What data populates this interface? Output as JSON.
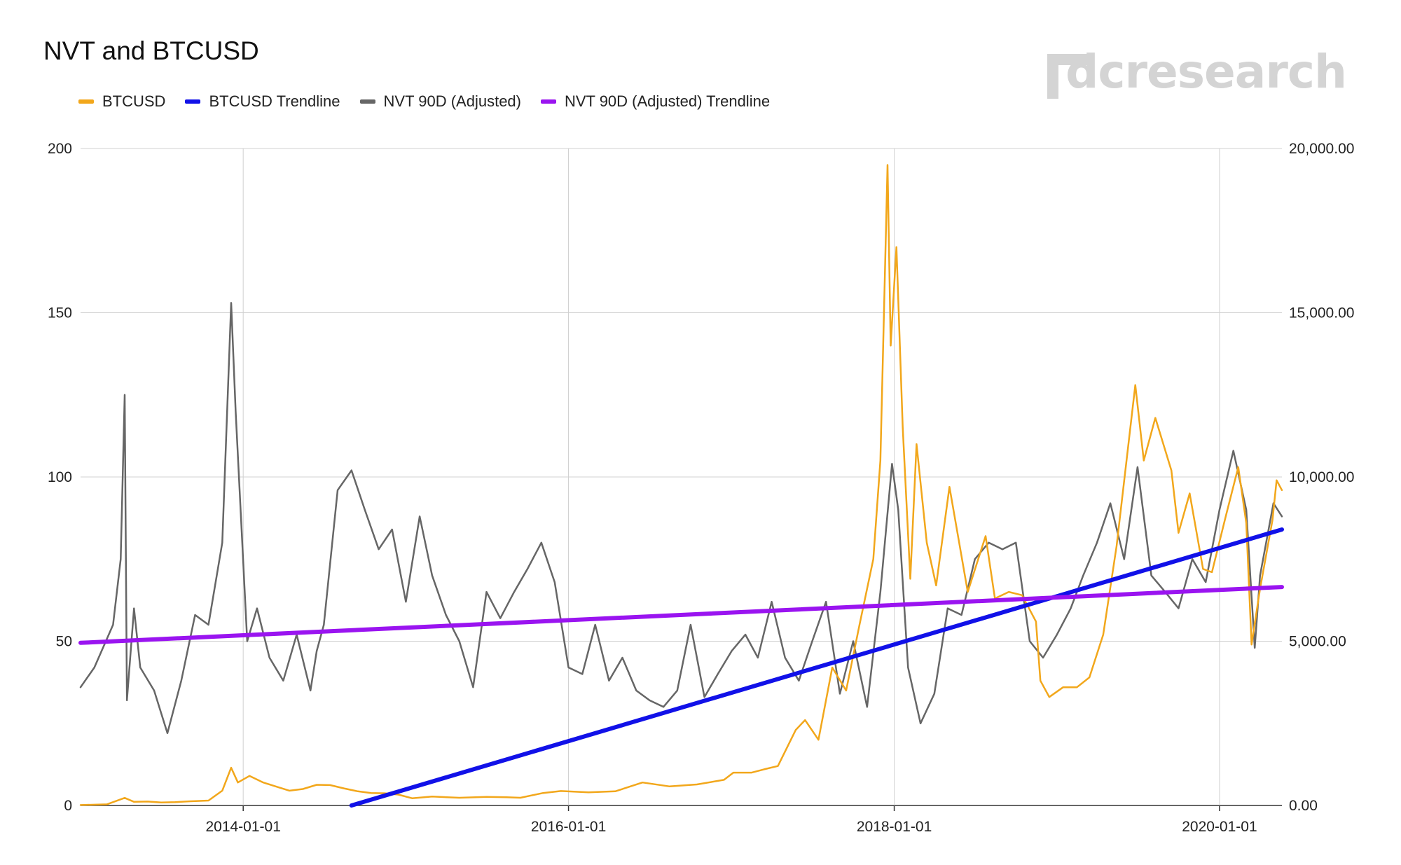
{
  "chart_data": {
    "type": "line",
    "title": "NVT and BTCUSD",
    "watermark": "dcresearch",
    "legend_position": "top-left",
    "grid": true,
    "colors": {
      "BTCUSD": "#f2a71b",
      "BTCUSD Trendline": "#1111e8",
      "NVT 90D (Adjusted)": "#666666",
      "NVT 90D (Adjusted) Trendline": "#9a14f0"
    },
    "x_axis": {
      "type": "date",
      "range": [
        "2013-01-01",
        "2020-05-20"
      ],
      "tick_labels": [
        "2014-01-01",
        "2016-01-01",
        "2018-01-01",
        "2020-01-01"
      ]
    },
    "y_left": {
      "range": [
        0,
        200
      ],
      "tick_labels": [
        "0",
        "50",
        "100",
        "150",
        "200"
      ]
    },
    "y_right": {
      "range": [
        0,
        20000
      ],
      "tick_labels": [
        "0.00",
        "5,000.00",
        "10,000.00",
        "15,000.00",
        "20,000.00"
      ]
    },
    "series": [
      {
        "name": "BTCUSD",
        "axis": "right",
        "points": [
          [
            "2013-01-01",
            13
          ],
          [
            "2013-03-01",
            35
          ],
          [
            "2013-04-10",
            230
          ],
          [
            "2013-05-01",
            110
          ],
          [
            "2013-06-01",
            120
          ],
          [
            "2013-07-01",
            90
          ],
          [
            "2013-08-01",
            100
          ],
          [
            "2013-09-01",
            125
          ],
          [
            "2013-10-15",
            150
          ],
          [
            "2013-11-15",
            450
          ],
          [
            "2013-12-05",
            1150
          ],
          [
            "2013-12-20",
            700
          ],
          [
            "2014-01-15",
            900
          ],
          [
            "2014-02-15",
            700
          ],
          [
            "2014-03-15",
            580
          ],
          [
            "2014-04-15",
            450
          ],
          [
            "2014-05-15",
            500
          ],
          [
            "2014-06-15",
            630
          ],
          [
            "2014-07-15",
            620
          ],
          [
            "2014-08-15",
            520
          ],
          [
            "2014-09-15",
            430
          ],
          [
            "2014-10-15",
            380
          ],
          [
            "2014-11-15",
            370
          ],
          [
            "2014-12-15",
            330
          ],
          [
            "2015-01-15",
            220
          ],
          [
            "2015-03-01",
            270
          ],
          [
            "2015-05-01",
            235
          ],
          [
            "2015-07-01",
            260
          ],
          [
            "2015-08-15",
            250
          ],
          [
            "2015-09-15",
            235
          ],
          [
            "2015-11-05",
            380
          ],
          [
            "2015-12-15",
            440
          ],
          [
            "2016-02-15",
            400
          ],
          [
            "2016-04-15",
            430
          ],
          [
            "2016-06-15",
            700
          ],
          [
            "2016-08-15",
            580
          ],
          [
            "2016-10-15",
            640
          ],
          [
            "2016-12-15",
            780
          ],
          [
            "2017-01-05",
            1000
          ],
          [
            "2017-02-15",
            1000
          ],
          [
            "2017-03-15",
            1100
          ],
          [
            "2017-04-15",
            1200
          ],
          [
            "2017-05-25",
            2300
          ],
          [
            "2017-06-15",
            2600
          ],
          [
            "2017-07-15",
            2000
          ],
          [
            "2017-08-15",
            4200
          ],
          [
            "2017-09-15",
            3500
          ],
          [
            "2017-10-15",
            5500
          ],
          [
            "2017-11-15",
            7500
          ],
          [
            "2017-12-01",
            10500
          ],
          [
            "2017-12-17",
            19500
          ],
          [
            "2017-12-24",
            14000
          ],
          [
            "2018-01-06",
            17000
          ],
          [
            "2018-01-20",
            11500
          ],
          [
            "2018-02-06",
            6900
          ],
          [
            "2018-02-20",
            11000
          ],
          [
            "2018-03-15",
            8000
          ],
          [
            "2018-04-05",
            6700
          ],
          [
            "2018-05-05",
            9700
          ],
          [
            "2018-06-15",
            6500
          ],
          [
            "2018-07-25",
            8200
          ],
          [
            "2018-08-15",
            6300
          ],
          [
            "2018-09-15",
            6500
          ],
          [
            "2018-10-15",
            6400
          ],
          [
            "2018-11-15",
            5600
          ],
          [
            "2018-11-25",
            3800
          ],
          [
            "2018-12-15",
            3300
          ],
          [
            "2019-01-15",
            3600
          ],
          [
            "2019-02-15",
            3600
          ],
          [
            "2019-03-15",
            3900
          ],
          [
            "2019-04-15",
            5200
          ],
          [
            "2019-05-15",
            7900
          ],
          [
            "2019-06-26",
            12800
          ],
          [
            "2019-07-15",
            10500
          ],
          [
            "2019-08-10",
            11800
          ],
          [
            "2019-09-15",
            10200
          ],
          [
            "2019-10-01",
            8300
          ],
          [
            "2019-10-26",
            9500
          ],
          [
            "2019-11-25",
            7200
          ],
          [
            "2019-12-15",
            7100
          ],
          [
            "2020-01-15",
            8800
          ],
          [
            "2020-02-12",
            10300
          ],
          [
            "2020-03-01",
            8600
          ],
          [
            "2020-03-13",
            4900
          ],
          [
            "2020-04-01",
            6600
          ],
          [
            "2020-04-29",
            8700
          ],
          [
            "2020-05-08",
            9900
          ],
          [
            "2020-05-20",
            9600
          ]
        ]
      },
      {
        "name": "BTCUSD Trendline",
        "axis": "right",
        "points": [
          [
            "2014-09-01",
            0
          ],
          [
            "2020-05-20",
            8400
          ]
        ]
      },
      {
        "name": "NVT 90D (Adjusted)",
        "axis": "left",
        "points": [
          [
            "2013-01-01",
            36
          ],
          [
            "2013-02-01",
            42
          ],
          [
            "2013-03-15",
            55
          ],
          [
            "2013-04-01",
            75
          ],
          [
            "2013-04-10",
            125
          ],
          [
            "2013-04-15",
            32
          ],
          [
            "2013-05-01",
            60
          ],
          [
            "2013-05-15",
            42
          ],
          [
            "2013-06-15",
            35
          ],
          [
            "2013-07-15",
            22
          ],
          [
            "2013-08-15",
            38
          ],
          [
            "2013-09-15",
            58
          ],
          [
            "2013-10-15",
            55
          ],
          [
            "2013-11-15",
            80
          ],
          [
            "2013-12-05",
            153
          ],
          [
            "2013-12-15",
            120
          ],
          [
            "2014-01-10",
            50
          ],
          [
            "2014-02-01",
            60
          ],
          [
            "2014-03-01",
            45
          ],
          [
            "2014-04-01",
            38
          ],
          [
            "2014-05-01",
            52
          ],
          [
            "2014-06-01",
            35
          ],
          [
            "2014-06-15",
            47
          ],
          [
            "2014-07-01",
            55
          ],
          [
            "2014-08-01",
            96
          ],
          [
            "2014-09-01",
            102
          ],
          [
            "2014-10-01",
            90
          ],
          [
            "2014-11-01",
            78
          ],
          [
            "2014-12-01",
            84
          ],
          [
            "2015-01-01",
            62
          ],
          [
            "2015-02-01",
            88
          ],
          [
            "2015-03-01",
            70
          ],
          [
            "2015-04-01",
            58
          ],
          [
            "2015-05-01",
            50
          ],
          [
            "2015-06-01",
            36
          ],
          [
            "2015-07-01",
            65
          ],
          [
            "2015-08-01",
            57
          ],
          [
            "2015-09-01",
            65
          ],
          [
            "2015-10-01",
            72
          ],
          [
            "2015-11-01",
            80
          ],
          [
            "2015-12-01",
            68
          ],
          [
            "2016-01-01",
            42
          ],
          [
            "2016-02-01",
            40
          ],
          [
            "2016-03-01",
            55
          ],
          [
            "2016-04-01",
            38
          ],
          [
            "2016-05-01",
            45
          ],
          [
            "2016-06-01",
            35
          ],
          [
            "2016-07-01",
            32
          ],
          [
            "2016-08-01",
            30
          ],
          [
            "2016-09-01",
            35
          ],
          [
            "2016-10-01",
            55
          ],
          [
            "2016-11-01",
            33
          ],
          [
            "2016-12-01",
            40
          ],
          [
            "2017-01-01",
            47
          ],
          [
            "2017-02-01",
            52
          ],
          [
            "2017-03-01",
            45
          ],
          [
            "2017-04-01",
            62
          ],
          [
            "2017-05-01",
            45
          ],
          [
            "2017-06-01",
            38
          ],
          [
            "2017-07-01",
            50
          ],
          [
            "2017-08-01",
            62
          ],
          [
            "2017-09-01",
            34
          ],
          [
            "2017-10-01",
            50
          ],
          [
            "2017-11-01",
            30
          ],
          [
            "2017-12-01",
            65
          ],
          [
            "2017-12-27",
            104
          ],
          [
            "2018-01-10",
            90
          ],
          [
            "2018-02-01",
            42
          ],
          [
            "2018-03-01",
            25
          ],
          [
            "2018-04-01",
            34
          ],
          [
            "2018-05-01",
            60
          ],
          [
            "2018-06-01",
            58
          ],
          [
            "2018-07-01",
            75
          ],
          [
            "2018-08-01",
            80
          ],
          [
            "2018-09-01",
            78
          ],
          [
            "2018-10-01",
            80
          ],
          [
            "2018-11-01",
            50
          ],
          [
            "2018-12-01",
            45
          ],
          [
            "2019-01-01",
            52
          ],
          [
            "2019-02-01",
            60
          ],
          [
            "2019-03-01",
            70
          ],
          [
            "2019-04-01",
            80
          ],
          [
            "2019-05-01",
            92
          ],
          [
            "2019-06-01",
            75
          ],
          [
            "2019-07-01",
            103
          ],
          [
            "2019-08-01",
            70
          ],
          [
            "2019-09-01",
            65
          ],
          [
            "2019-10-01",
            60
          ],
          [
            "2019-11-01",
            75
          ],
          [
            "2019-12-01",
            68
          ],
          [
            "2020-01-01",
            90
          ],
          [
            "2020-02-01",
            108
          ],
          [
            "2020-03-01",
            90
          ],
          [
            "2020-03-20",
            48
          ],
          [
            "2020-04-01",
            70
          ],
          [
            "2020-05-01",
            92
          ],
          [
            "2020-05-20",
            88
          ]
        ]
      },
      {
        "name": "NVT 90D (Adjusted) Trendline",
        "axis": "left",
        "points": [
          [
            "2013-01-01",
            49.5
          ],
          [
            "2020-05-20",
            66.5
          ]
        ]
      }
    ]
  }
}
